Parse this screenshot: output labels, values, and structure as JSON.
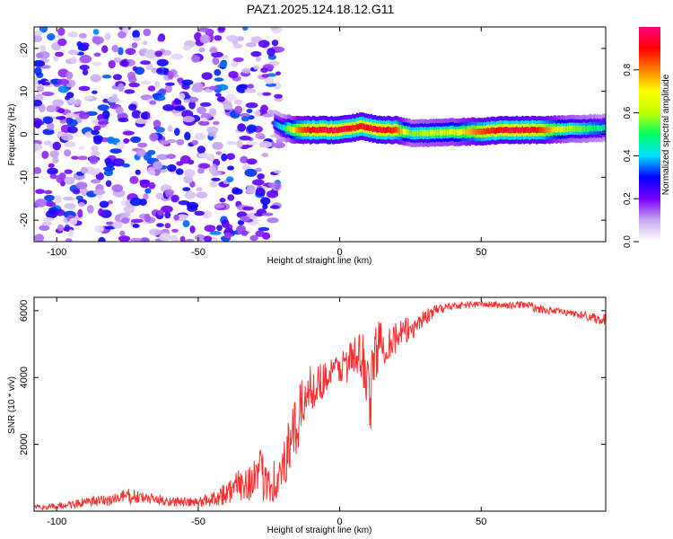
{
  "title": "PAZ1.2025.124.18.12.G11",
  "chart_data": [
    {
      "type": "heatmap",
      "xlabel": "Height of straight line (km)",
      "ylabel": "Frequency (Hz)",
      "xlim": [
        -108,
        94
      ],
      "ylim": [
        -25,
        25
      ],
      "xticks": [
        -100,
        -50,
        0,
        50
      ],
      "yticks": [
        -20,
        -10,
        0,
        10,
        20
      ],
      "colorbar": {
        "label": "Normalized spectral amplitude",
        "range": [
          0,
          1
        ],
        "ticks": [
          0,
          0.2,
          0.4,
          0.6,
          0.8
        ],
        "tick_labels": [
          "0.0",
          "0.2",
          "0.4",
          "0.6",
          "0.8"
        ],
        "colors": [
          "#ffffff",
          "#c8a8f0",
          "#7a00ff",
          "#0000ff",
          "#00e0ff",
          "#00ff60",
          "#c0ff00",
          "#ffff00",
          "#ff8000",
          "#ff0000",
          "#ff0080"
        ]
      },
      "noise_region_km": [
        -108,
        -23
      ],
      "signal_track": {
        "start_km": -23,
        "frequency_hz": [
          [
            -23,
            2.5
          ],
          [
            -20,
            1.5
          ],
          [
            -15,
            1.0
          ],
          [
            -10,
            1.0
          ],
          [
            -5,
            1.0
          ],
          [
            0,
            1.0
          ],
          [
            5,
            1.5
          ],
          [
            8,
            2.0
          ],
          [
            10,
            1.5
          ],
          [
            15,
            1.0
          ],
          [
            20,
            1.0
          ],
          [
            25,
            0.3
          ],
          [
            30,
            0.3
          ],
          [
            40,
            0.5
          ],
          [
            50,
            0.7
          ],
          [
            60,
            1.0
          ],
          [
            70,
            1.0
          ],
          [
            80,
            1.2
          ],
          [
            94,
            1.5
          ]
        ],
        "peak_amplitude": [
          [
            -23,
            0.35
          ],
          [
            -20,
            0.45
          ],
          [
            -15,
            0.8
          ],
          [
            -10,
            0.92
          ],
          [
            -5,
            0.95
          ],
          [
            0,
            0.95
          ],
          [
            5,
            0.88
          ],
          [
            10,
            0.92
          ],
          [
            15,
            0.95
          ],
          [
            20,
            0.85
          ],
          [
            25,
            0.55
          ],
          [
            30,
            0.6
          ],
          [
            40,
            0.65
          ],
          [
            50,
            0.85
          ],
          [
            60,
            0.95
          ],
          [
            70,
            0.9
          ],
          [
            80,
            0.6
          ],
          [
            90,
            0.5
          ],
          [
            94,
            0.45
          ]
        ]
      }
    },
    {
      "type": "line",
      "xlabel": "Height of straight line (km)",
      "ylabel": "SNR (10 * v/v)",
      "xlim": [
        -108,
        94
      ],
      "ylim": [
        0,
        6400
      ],
      "xticks": [
        -100,
        -50,
        0,
        50
      ],
      "yticks": [
        2000,
        4000,
        6000
      ],
      "color": "#ff3030",
      "series": [
        {
          "x": [
            -108,
            -100,
            -90,
            -80,
            -75,
            -70,
            -60,
            -50,
            -45,
            -40,
            -35,
            -30,
            -25,
            -22,
            -18,
            -15,
            -12,
            -10,
            -5,
            0,
            5,
            8,
            10,
            11,
            12,
            13,
            15,
            20,
            25,
            30,
            35,
            40,
            50,
            60,
            65,
            70,
            80,
            90,
            94
          ],
          "y": [
            100,
            150,
            250,
            350,
            450,
            400,
            300,
            250,
            380,
            550,
            800,
            1000,
            1100,
            800,
            1800,
            2600,
            3500,
            3700,
            4000,
            4300,
            4550,
            4600,
            4000,
            3300,
            4500,
            4900,
            5000,
            5200,
            5450,
            5800,
            6050,
            6150,
            6200,
            6150,
            6200,
            6050,
            5950,
            5800,
            5700
          ],
          "noise_amplitude": [
            80,
            100,
            150,
            200,
            250,
            180,
            150,
            150,
            250,
            350,
            500,
            700,
            900,
            600,
            900,
            1000,
            700,
            700,
            500,
            500,
            700,
            800,
            1100,
            1200,
            900,
            900,
            700,
            500,
            400,
            250,
            150,
            120,
            100,
            100,
            120,
            120,
            100,
            150,
            200
          ]
        }
      ]
    }
  ]
}
